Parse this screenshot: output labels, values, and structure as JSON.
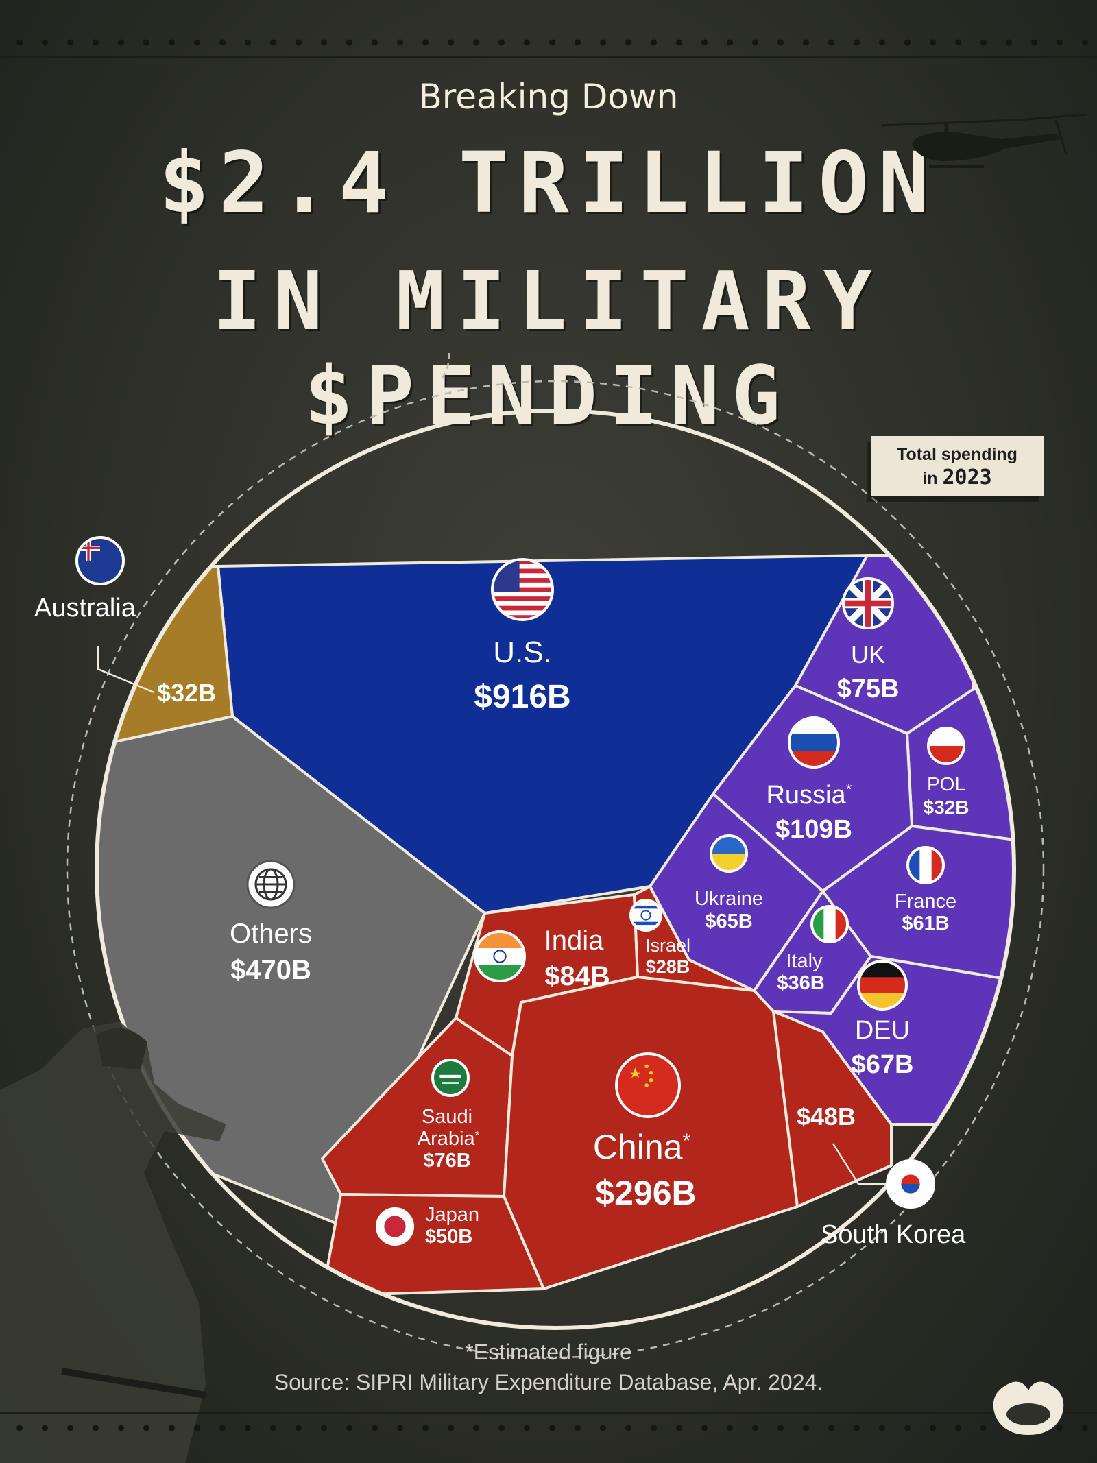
{
  "title": {
    "pretitle": "Breaking Down",
    "line1": "$2.4 TRILLION",
    "line2": "IN MILITARY $PENDING"
  },
  "badge": {
    "line1": "Total spending",
    "line2_prefix": "in",
    "year": "2023"
  },
  "chart_data": {
    "type": "voronoi-pie",
    "title": "Breaking Down $2.4 Trillion in Military Spending",
    "subtitle": "Total spending in 2023",
    "unit": "USD billions",
    "total_label": "$2.4 Trillion",
    "regions": [
      {
        "name": "U.S.",
        "value": 916,
        "label": "$916B",
        "group": "blue",
        "color": "#0f2f96"
      },
      {
        "name": "Others",
        "value": 470,
        "label": "$470B",
        "group": "gray",
        "color": "#6b6b6b"
      },
      {
        "name": "Australia",
        "value": 32,
        "label": "$32B",
        "group": "gold",
        "color": "#a67c26"
      },
      {
        "name": "China",
        "value": 296,
        "label": "$296B",
        "estimated": true,
        "group": "red",
        "color": "#b3261c"
      },
      {
        "name": "India",
        "value": 84,
        "label": "$84B",
        "group": "red",
        "color": "#b3261c"
      },
      {
        "name": "Saudi Arabia",
        "value": 76,
        "label": "$76B",
        "estimated": true,
        "group": "red",
        "color": "#b3261c"
      },
      {
        "name": "Japan",
        "value": 50,
        "label": "$50B",
        "group": "red",
        "color": "#b3261c"
      },
      {
        "name": "South Korea",
        "value": 48,
        "label": "$48B",
        "group": "red",
        "color": "#b3261c"
      },
      {
        "name": "Israel",
        "value": 28,
        "label": "$28B",
        "group": "red",
        "color": "#b3261c"
      },
      {
        "name": "Russia",
        "value": 109,
        "label": "$109B",
        "estimated": true,
        "group": "purple",
        "color": "#5e34b8"
      },
      {
        "name": "UK",
        "value": 75,
        "label": "$75B",
        "group": "purple",
        "color": "#5e34b8"
      },
      {
        "name": "DEU",
        "value": 67,
        "label": "$67B",
        "group": "purple",
        "color": "#5e34b8"
      },
      {
        "name": "Ukraine",
        "value": 65,
        "label": "$65B",
        "group": "purple",
        "color": "#5e34b8"
      },
      {
        "name": "France",
        "value": 61,
        "label": "$61B",
        "group": "purple",
        "color": "#5e34b8"
      },
      {
        "name": "Italy",
        "value": 36,
        "label": "$36B",
        "group": "purple",
        "color": "#5e34b8"
      },
      {
        "name": "POL",
        "value": 32,
        "label": "$32B",
        "group": "purple",
        "color": "#5e34b8"
      }
    ]
  },
  "labels": {
    "us": {
      "name": "U.S.",
      "value": "$916B"
    },
    "others": {
      "name": "Others",
      "value": "$470B"
    },
    "australia": {
      "name": "Australia",
      "value": "$32B"
    },
    "uk": {
      "name": "UK",
      "value": "$75B"
    },
    "russia": {
      "name": "Russia",
      "star": "*",
      "value": "$109B"
    },
    "pol": {
      "name": "POL",
      "value": "$32B"
    },
    "ukraine": {
      "name": "Ukraine",
      "value": "$65B"
    },
    "france": {
      "name": "France",
      "value": "$61B"
    },
    "italy": {
      "name": "Italy",
      "value": "$36B"
    },
    "deu": {
      "name": "DEU",
      "value": "$67B"
    },
    "india": {
      "name": "India",
      "value": "$84B"
    },
    "israel": {
      "name": "Israel",
      "value": "$28B"
    },
    "saudi": {
      "name1": "Saudi",
      "name2": "Arabia",
      "star": "*",
      "value": "$76B"
    },
    "japan": {
      "name": "Japan",
      "value": "$50B"
    },
    "china": {
      "name": "China",
      "star": "*",
      "value": "$296B"
    },
    "south_korea": {
      "name": "South Korea",
      "value": "$48B"
    }
  },
  "footnote": "*Estimated figure",
  "source": "Source: SIPRI Military Expenditure Database, Apr. 2024.",
  "colors": {
    "background": "#2e3029",
    "us": "#0f2f96",
    "others": "#6b6b6b",
    "australia": "#a67c26",
    "red_group": "#b3261c",
    "purple_group": "#5e34b8",
    "title": "#efeadb"
  }
}
